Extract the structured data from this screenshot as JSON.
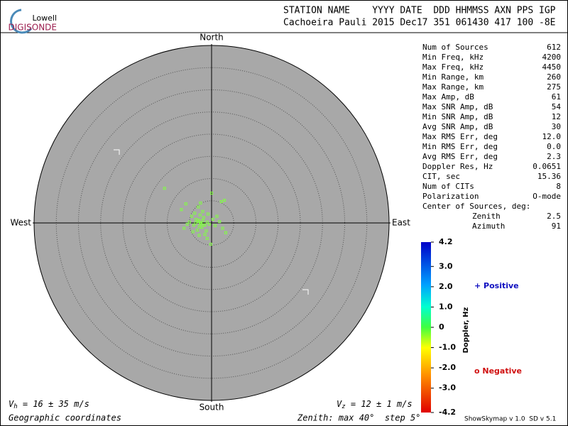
{
  "logo": {
    "line1": "Lowell",
    "line2": "DIGISONDE"
  },
  "header": {
    "labels": "STATION NAME    YYYY DATE  DDD HHMMSS AXN PPS IGP",
    "values": "Cachoeira Pauli 2015 Dec17 351 061430 417 100 -8E"
  },
  "chart_data": {
    "type": "polar-scatter",
    "directions": {
      "north": "North",
      "east": "East",
      "south": "South",
      "west": "West"
    },
    "rlim": [
      0,
      40
    ],
    "rticks": [
      5,
      10,
      15,
      20,
      25,
      30,
      35
    ],
    "color": "#80ff40",
    "points": {
      "x": [
        -2.5,
        -2,
        -1.5,
        -3,
        -2.2,
        -1.8,
        -2.8,
        -1,
        -0.5,
        -3.5,
        -4,
        -2.6,
        -1.2,
        0.3,
        0.8,
        -3.2,
        -4.5,
        -5,
        -5.5,
        -3.8,
        -2,
        -0.8,
        1.2,
        1.8,
        2.5,
        -1.5,
        -2.8,
        -4.2,
        -6.2,
        -6.8,
        -5.8,
        -3,
        -2.5,
        0,
        2.9,
        2.2,
        -10.6,
        -0.2,
        3.2,
        -1,
        -3.6,
        -2.4,
        -1.9,
        -2.9
      ],
      "y": [
        0,
        0.5,
        -0.5,
        0.3,
        -1,
        1.2,
        -0.8,
        0.2,
        -0.3,
        0.8,
        -0.5,
        1.8,
        -1.8,
        0.8,
        -0.6,
        -1.6,
        1.5,
        0.2,
        -0.3,
        2.2,
        2.6,
        2,
        1.5,
        0.3,
        -1.2,
        -2.6,
        -2.8,
        -2,
        -1.2,
        3,
        4.3,
        3.6,
        4.5,
        6.7,
        5.1,
        4.8,
        7.8,
        -4.8,
        -2.2,
        -3.5,
        0,
        -0.2,
        -0.4,
        0.6
      ]
    },
    "colorbar": {
      "title": "Doppler, Hz",
      "lim": [
        -4.2,
        4.2
      ],
      "ticks": [
        {
          "value": 4.2,
          "label": "4.2"
        },
        {
          "value": 3,
          "label": "3.0"
        },
        {
          "value": 2,
          "label": "2.0"
        },
        {
          "value": 1,
          "label": "1.0"
        },
        0,
        {
          "value": -1,
          "label": "-1.0"
        },
        {
          "value": -2,
          "label": "-2.0"
        },
        {
          "value": -3,
          "label": "-3.0"
        },
        {
          "value": -4.2,
          "label": "-4.2"
        }
      ]
    },
    "legend": {
      "positive": "+ Positive",
      "negative": "o Negative"
    }
  },
  "stats": {
    "rows": [
      {
        "label": "Num of Sources",
        "value": "612"
      },
      {
        "label": "Min Freq, kHz",
        "value": "4200"
      },
      {
        "label": "Max Freq, kHz",
        "value": "4450"
      },
      {
        "label": "Min Range, km",
        "value": "260"
      },
      {
        "label": "Max Range, km",
        "value": "275"
      },
      {
        "label": "Max Amp, dB",
        "value": "61"
      },
      {
        "label": "Max SNR Amp, dB",
        "value": "54"
      },
      {
        "label": "Min SNR Amp, dB",
        "value": "12"
      },
      {
        "label": "Avg SNR Amp, dB",
        "value": "30"
      },
      {
        "label": "Max RMS Err, deg",
        "value": "12.0"
      },
      {
        "label": "Min RMS Err, deg",
        "value": "0.0"
      },
      {
        "label": "Avg RMS Err, deg",
        "value": "2.3"
      },
      {
        "label": "Doppler Res, Hz",
        "value": "0.0651"
      },
      {
        "label": "CIT, sec",
        "value": "15.36"
      },
      {
        "label": "Num of CITs",
        "value": "8"
      },
      {
        "label": "Polarization",
        "value": "O-mode"
      }
    ],
    "center": {
      "title": "Center of Sources, deg:",
      "rows": [
        {
          "label": "Zenith",
          "value": "2.5"
        },
        {
          "label": "Azimuth",
          "value": "91"
        }
      ]
    }
  },
  "footer": {
    "vh": {
      "symbol": "V",
      "sub": "h",
      "text": " = 16 ± 35 m/s"
    },
    "vz": {
      "symbol": "V",
      "sub": "z",
      "text": " = 12 ± 1 m/s"
    },
    "coords": "Geographic coordinates",
    "zenith": "Zenith: max 40°  step 5°",
    "version": "ShowSkymap v 1.0  SD v 5.1"
  }
}
